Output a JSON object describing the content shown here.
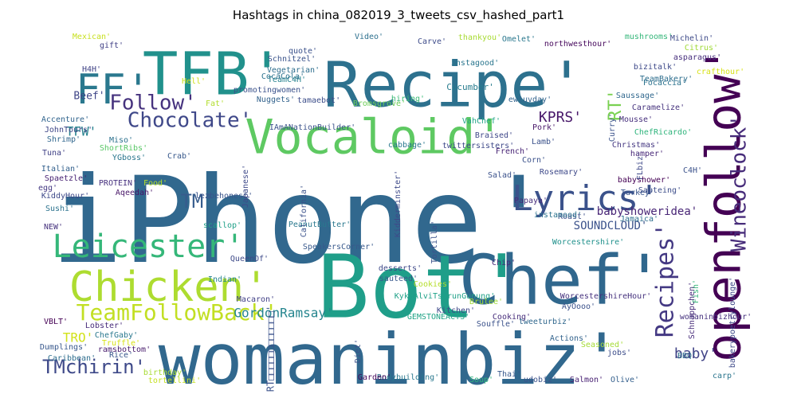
{
  "chart_data": {
    "type": "wordcloud",
    "title": "Hashtags in china_082019_3_tweets_csv_hashed_part1",
    "background": "#ffffff",
    "colormap": "viridis",
    "words": [
      {
        "text": "iPhone'",
        "weight": 100,
        "color": "#31688e",
        "rotate": false
      },
      {
        "text": "Bot'",
        "weight": 78,
        "color": "#1f9e89",
        "rotate": false
      },
      {
        "text": "Chef'",
        "weight": 70,
        "color": "#30678d",
        "rotate": false
      },
      {
        "text": "womaninbiz'",
        "weight": 72,
        "color": "#31688e",
        "rotate": false
      },
      {
        "text": "Recipe'",
        "weight": 64,
        "color": "#2d718e",
        "rotate": false
      },
      {
        "text": "TFB'",
        "weight": 58,
        "color": "#21918c",
        "rotate": false
      },
      {
        "text": "openfollow'",
        "weight": 44,
        "color": "#440154",
        "rotate": true
      },
      {
        "text": "Vocaloid'",
        "weight": 42,
        "color": "#5ec962",
        "rotate": false
      },
      {
        "text": "Chicken'",
        "weight": 40,
        "color": "#addc30",
        "rotate": false
      },
      {
        "text": "FF'",
        "weight": 40,
        "color": "#2a788e",
        "rotate": false
      },
      {
        "text": "Lyrics'",
        "weight": 34,
        "color": "#3b528b",
        "rotate": false
      },
      {
        "text": "Leicester'",
        "weight": 30,
        "color": "#35b779",
        "rotate": false
      },
      {
        "text": "Chocolate'",
        "weight": 24,
        "color": "#3f4889",
        "rotate": false
      },
      {
        "text": "TeamFollowBack'",
        "weight": 22,
        "color": "#c2df23",
        "rotate": false
      },
      {
        "text": "Recipes'",
        "weight": 24,
        "color": "#443983",
        "rotate": true
      },
      {
        "text": "Wineoclock'",
        "weight": 22,
        "color": "#472c7a",
        "rotate": true
      },
      {
        "text": "Follow'",
        "weight": 20,
        "color": "#46327e",
        "rotate": false
      },
      {
        "text": "TMchirin'",
        "weight": 20,
        "color": "#3e4989",
        "rotate": false
      },
      {
        "text": "TM'",
        "weight": 20,
        "color": "#365c8d",
        "rotate": false
      },
      {
        "text": "GordonRamsay'",
        "weight": 14,
        "color": "#25858e",
        "rotate": false
      },
      {
        "text": "KPRS'",
        "weight": 16,
        "color": "#48186a",
        "rotate": false
      },
      {
        "text": "RT'",
        "weight": 18,
        "color": "#7ad151",
        "rotate": true
      },
      {
        "text": "baby'",
        "weight": 14,
        "color": "#414487",
        "rotate": false
      },
      {
        "text": "babyshoweridea'",
        "weight": 12,
        "color": "#482576",
        "rotate": false
      },
      {
        "text": "SOUNDCLOUD'",
        "weight": 11,
        "color": "#3b528b",
        "rotate": false
      },
      {
        "text": "TFW'",
        "weight": 12,
        "color": "#26828e",
        "rotate": false
      },
      {
        "text": "TRO'",
        "weight": 12,
        "color": "#d2e21b",
        "rotate": false
      },
      {
        "text": "Beef'",
        "weight": 10,
        "color": "#404688",
        "rotate": false
      },
      {
        "text": "Vegetarian'",
        "weight": 9,
        "color": "#2e6e8e",
        "rotate": false
      },
      {
        "text": "Schnitzel'",
        "weight": 9,
        "color": "#3a538b",
        "rotate": false
      },
      {
        "text": "Cucumber'",
        "weight": 9,
        "color": "#287c8e",
        "rotate": false
      },
      {
        "text": "Saussage'",
        "weight": 9,
        "color": "#31688e",
        "rotate": false
      },
      {
        "text": "Caramelize'",
        "weight": 8,
        "color": "#46337e",
        "rotate": false
      },
      {
        "text": "Focaccia'",
        "weight": 8,
        "color": "#2c728e",
        "rotate": false
      },
      {
        "text": "asparagus'",
        "weight": 8,
        "color": "#472f7d",
        "rotate": false
      },
      {
        "text": "Michelin'",
        "weight": 8,
        "color": "#3e4a89",
        "rotate": false
      },
      {
        "text": "Citrus'",
        "weight": 8,
        "color": "#a0da39",
        "rotate": false
      },
      {
        "text": "hamper'",
        "weight": 8,
        "color": "#482878",
        "rotate": false
      },
      {
        "text": "Christmas'",
        "weight": 8,
        "color": "#453882",
        "rotate": false
      },
      {
        "text": "babyshower'",
        "weight": 8,
        "color": "#440154",
        "rotate": false
      },
      {
        "text": "Turkey'",
        "weight": 8,
        "color": "#39568c",
        "rotate": false
      },
      {
        "text": "Sauteing'",
        "weight": 8,
        "color": "#3d4e8a",
        "rotate": false
      },
      {
        "text": "Jamaica'",
        "weight": 8,
        "color": "#2e6f8e",
        "rotate": false
      },
      {
        "text": "Roast'",
        "weight": 8,
        "color": "#3c4f8a",
        "rotate": false
      },
      {
        "text": "Worcestershire'",
        "weight": 8,
        "color": "#21918c",
        "rotate": false
      },
      {
        "text": "WorcestershireHour'",
        "weight": 8,
        "color": "#46327e",
        "rotate": false
      },
      {
        "text": "Kitchen'",
        "weight": 8,
        "color": "#3e4989",
        "rotate": false
      },
      {
        "text": "Souffle'",
        "weight": 8,
        "color": "#3b528b",
        "rotate": false
      },
      {
        "text": "Cooking'",
        "weight": 8,
        "color": "#472d7b",
        "rotate": false
      },
      {
        "text": "GEMSTONEACTS'",
        "weight": 8,
        "color": "#20a386",
        "rotate": false
      },
      {
        "text": "tweeturbiz'",
        "weight": 8,
        "color": "#30678d",
        "rotate": false
      },
      {
        "text": "Bodybuilding'",
        "weight": 8,
        "color": "#2a788e",
        "rotate": false
      },
      {
        "text": "Garden'",
        "weight": 8,
        "color": "#46085c",
        "rotate": false
      },
      {
        "text": "Soup'",
        "weight": 8,
        "color": "#2fb47c",
        "rotate": false
      },
      {
        "text": "Thai'",
        "weight": 8,
        "color": "#38598c",
        "rotate": false
      },
      {
        "text": "udobiz'",
        "weight": 8,
        "color": "#3b528b",
        "rotate": false
      },
      {
        "text": "Salmon'",
        "weight": 8,
        "color": "#482173",
        "rotate": false
      },
      {
        "text": "Olive'",
        "weight": 8,
        "color": "#35608d",
        "rotate": false
      },
      {
        "text": "carp'",
        "weight": 8,
        "color": "#2b758e",
        "rotate": false
      },
      {
        "text": "BBQ'",
        "weight": 8,
        "color": "#2d708e",
        "rotate": false
      },
      {
        "text": "jobs'",
        "weight": 8,
        "color": "#3d4d8a",
        "rotate": false
      },
      {
        "text": "Actions'",
        "weight": 8,
        "color": "#33638d",
        "rotate": false
      },
      {
        "text": "Chip'",
        "weight": 8,
        "color": "#472a7a",
        "rotate": false
      },
      {
        "text": "Macaron'",
        "weight": 8,
        "color": "#424086",
        "rotate": false
      },
      {
        "text": "QueenOf'",
        "weight": 8,
        "color": "#3e4a89",
        "rotate": false
      },
      {
        "text": "Indian'",
        "weight": 8,
        "color": "#25838e",
        "rotate": false
      },
      {
        "text": "scallop'",
        "weight": 8,
        "color": "#1fa088",
        "rotate": false
      },
      {
        "text": "lezbehonest'",
        "weight": 8,
        "color": "#3a548c",
        "rotate": false
      },
      {
        "text": "Aqeedah'",
        "weight": 8,
        "color": "#481668",
        "rotate": false
      },
      {
        "text": "PROTEIN'",
        "weight": 8,
        "color": "#46307e",
        "rotate": false
      },
      {
        "text": "YGboss'",
        "weight": 8,
        "color": "#2a768e",
        "rotate": false
      },
      {
        "text": "ShortRibs'",
        "weight": 8,
        "color": "#58c765",
        "rotate": false
      },
      {
        "text": "Miso'",
        "weight": 8,
        "color": "#2c718e",
        "rotate": false
      },
      {
        "text": "Crab'",
        "weight": 8,
        "color": "#38598c",
        "rotate": false
      },
      {
        "text": "Shrimp'",
        "weight": 8,
        "color": "#31678e",
        "rotate": false
      },
      {
        "text": "JohnTours'",
        "weight": 8,
        "color": "#3f4788",
        "rotate": false
      },
      {
        "text": "Accenture'",
        "weight": 8,
        "color": "#32658e",
        "rotate": false
      },
      {
        "text": "Tuna'",
        "weight": 8,
        "color": "#414287",
        "rotate": false
      },
      {
        "text": "Italian'",
        "weight": 8,
        "color": "#34618d",
        "rotate": false
      },
      {
        "text": "Spaetzle'",
        "weight": 8,
        "color": "#482374",
        "rotate": false
      },
      {
        "text": "egg'",
        "weight": 8,
        "color": "#443983",
        "rotate": false
      },
      {
        "text": "Food'",
        "weight": 8,
        "color": "#b5de2b",
        "rotate": false
      },
      {
        "text": "KiddyHour'",
        "weight": 8,
        "color": "#3e4989",
        "rotate": false
      },
      {
        "text": "Sushi'",
        "weight": 8,
        "color": "#2c738e",
        "rotate": false
      },
      {
        "text": "NEW'",
        "weight": 8,
        "color": "#46337e",
        "rotate": false
      },
      {
        "text": "Dumplings'",
        "weight": 8,
        "color": "#38588c",
        "rotate": false
      },
      {
        "text": "Lobster'",
        "weight": 8,
        "color": "#472c7a",
        "rotate": false
      },
      {
        "text": "ChefGaby'",
        "weight": 8,
        "color": "#2a788e",
        "rotate": false
      },
      {
        "text": "VBLT'",
        "weight": 8,
        "color": "#440154",
        "rotate": false
      },
      {
        "text": "Truffle'",
        "weight": 8,
        "color": "#d8e219",
        "rotate": false
      },
      {
        "text": "ramsbottom'",
        "weight": 8,
        "color": "#481b6d",
        "rotate": false
      },
      {
        "text": "Caribbean'",
        "weight": 8,
        "color": "#2e6e8e",
        "rotate": false
      },
      {
        "text": "Rice'",
        "weight": 8,
        "color": "#39568c",
        "rotate": false
      },
      {
        "text": "birthday'",
        "weight": 8,
        "color": "#a8db34",
        "rotate": false
      },
      {
        "text": "tortellini'",
        "weight": 8,
        "color": "#c5e021",
        "rotate": false
      },
      {
        "text": "Mexican'",
        "weight": 8,
        "color": "#c8e020",
        "rotate": false
      },
      {
        "text": "gift'",
        "weight": 8,
        "color": "#424186",
        "rotate": false
      },
      {
        "text": "H4H'",
        "weight": 8,
        "color": "#414487",
        "rotate": false
      },
      {
        "text": "Hell'",
        "weight": 8,
        "color": "#d0e11c",
        "rotate": false
      },
      {
        "text": "Fat'",
        "weight": 8,
        "color": "#b2dd2d",
        "rotate": false
      },
      {
        "text": "promotingwomen'",
        "weight": 8,
        "color": "#3b528b",
        "rotate": false
      },
      {
        "text": "TeamC4H'",
        "weight": 8,
        "color": "#26828e",
        "rotate": false
      },
      {
        "text": "CocaCola'",
        "weight": 8,
        "color": "#2c728e",
        "rotate": false
      },
      {
        "text": "Nuggets'",
        "weight": 8,
        "color": "#33638d",
        "rotate": false
      },
      {
        "text": "tamaebot'",
        "weight": 8,
        "color": "#3d4e8a",
        "rotate": false
      },
      {
        "text": "Bromsgrove'",
        "weight": 8,
        "color": "#6ece58",
        "rotate": false
      },
      {
        "text": "quote'",
        "weight": 8,
        "color": "#3b528b",
        "rotate": false
      },
      {
        "text": "Video'",
        "weight": 8,
        "color": "#2d708e",
        "rotate": false
      },
      {
        "text": "Carve'",
        "weight": 8,
        "color": "#3e4c8a",
        "rotate": false
      },
      {
        "text": "thankyou'",
        "weight": 8,
        "color": "#a8db34",
        "rotate": false
      },
      {
        "text": "Omelet'",
        "weight": 8,
        "color": "#2a788e",
        "rotate": false
      },
      {
        "text": "northwesthour'",
        "weight": 8,
        "color": "#46085c",
        "rotate": false
      },
      {
        "text": "mushrooms'",
        "weight": 8,
        "color": "#34b679",
        "rotate": false
      },
      {
        "text": "instagood'",
        "weight": 8,
        "color": "#2a768e",
        "rotate": false
      },
      {
        "text": "hiring'",
        "weight": 8,
        "color": "#3aba76",
        "rotate": false
      },
      {
        "text": "bizitalk'",
        "weight": 8,
        "color": "#3e4989",
        "rotate": false
      },
      {
        "text": "TeamBakery'",
        "weight": 8,
        "color": "#2e6e8e",
        "rotate": false
      },
      {
        "text": "crafthour'",
        "weight": 8,
        "color": "#d8e219",
        "rotate": false
      },
      {
        "text": "ewluvday'",
        "weight": 8,
        "color": "#33638d",
        "rotate": false
      },
      {
        "text": "Mousse'",
        "weight": 8,
        "color": "#472f7d",
        "rotate": false
      },
      {
        "text": "ChefRicardo'",
        "weight": 8,
        "color": "#2fb47c",
        "rotate": false
      },
      {
        "text": "VahChef'",
        "weight": 8,
        "color": "#20a486",
        "rotate": false
      },
      {
        "text": "Braised'",
        "weight": 8,
        "color": "#3f4889",
        "rotate": false
      },
      {
        "text": "cabbage'",
        "weight": 8,
        "color": "#2a788e",
        "rotate": false
      },
      {
        "text": "twittersisters'",
        "weight": 8,
        "color": "#3e4989",
        "rotate": false
      },
      {
        "text": "Pork'",
        "weight": 8,
        "color": "#481769",
        "rotate": false
      },
      {
        "text": "Lamb'",
        "weight": 8,
        "color": "#3b528b",
        "rotate": false
      },
      {
        "text": "French'",
        "weight": 8,
        "color": "#482475",
        "rotate": false
      },
      {
        "text": "Corn'",
        "weight": 8,
        "color": "#3b528b",
        "rotate": false
      },
      {
        "text": "Rosemary'",
        "weight": 8,
        "color": "#3e4989",
        "rotate": false
      },
      {
        "text": "Salad'",
        "weight": 8,
        "color": "#3b528b",
        "rotate": false
      },
      {
        "text": "Papaya'",
        "weight": 8,
        "color": "#472d7b",
        "rotate": false
      },
      {
        "text": "instamood'",
        "weight": 8,
        "color": "#2c738e",
        "rotate": false
      },
      {
        "text": "IAmANationBuilder'",
        "weight": 8,
        "color": "#3b528b",
        "rotate": false
      },
      {
        "text": "PeanutButter'",
        "weight": 8,
        "color": "#2a788e",
        "rotate": false
      },
      {
        "text": "SpeakersCorner'",
        "weight": 8,
        "color": "#38598c",
        "rotate": false
      },
      {
        "text": "desserts'",
        "weight": 8,
        "color": "#3e4989",
        "rotate": false
      },
      {
        "text": "sauteed'",
        "weight": 8,
        "color": "#38588c",
        "rotate": false
      },
      {
        "text": "Cookies'",
        "weight": 8,
        "color": "#b5de2b",
        "rotate": false
      },
      {
        "text": "Brulee'",
        "weight": 8,
        "color": "#a0da39",
        "rotate": false
      },
      {
        "text": "KykaAlviTsurunGunung'",
        "weight": 8,
        "color": "#1fa188",
        "rotate": false
      },
      {
        "text": "AyOooo'",
        "weight": 8,
        "color": "#3b528b",
        "rotate": false
      },
      {
        "text": "Seasoned'",
        "weight": 8,
        "color": "#a5db36",
        "rotate": false
      },
      {
        "text": "Fish'",
        "weight": 8,
        "color": "#35b779",
        "rotate": false
      },
      {
        "text": "Schnappchen'",
        "weight": 8,
        "color": "#472c7a",
        "rotate": false
      },
      {
        "text": "bakerypoetrylounge'",
        "weight": 8,
        "color": "#3e4989",
        "rotate": false
      },
      {
        "text": "womaninbizhour'",
        "weight": 8,
        "color": "#46327e",
        "rotate": false
      },
      {
        "text": "RT□□□□□□□□□□□□'",
        "weight": 9,
        "color": "#3b528b",
        "rotate": false
      },
      {
        "text": "Japanese'",
        "weight": 8,
        "color": "#3e4989",
        "rotate": false
      },
      {
        "text": "Diet'",
        "weight": 8,
        "color": "#3b528b",
        "rotate": false
      },
      {
        "text": "Kidderminster'",
        "weight": 8,
        "color": "#3e4a89",
        "rotate": false
      },
      {
        "text": "Tortilla'",
        "weight": 8,
        "color": "#3b528b",
        "rotate": false
      },
      {
        "text": "California'",
        "weight": 8,
        "color": "#3b528b",
        "rotate": false
      },
      {
        "text": "Curry'",
        "weight": 8,
        "color": "#3b528b",
        "rotate": false
      },
      {
        "text": "FLbiz'",
        "weight": 8,
        "color": "#3e4989",
        "rotate": false
      },
      {
        "text": "C4H'",
        "weight": 8,
        "color": "#3b528b",
        "rotate": false
      }
    ]
  }
}
